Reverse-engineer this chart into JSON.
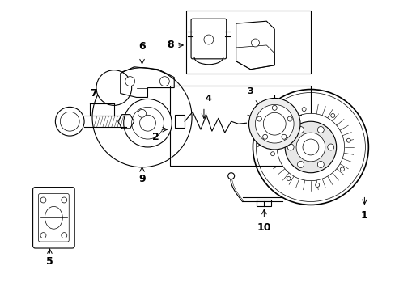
{
  "background_color": "#ffffff",
  "line_color": "#000000",
  "lw": 0.8,
  "tlw": 0.5,
  "thw": 1.2,
  "fig_width": 4.89,
  "fig_height": 3.6,
  "dpi": 100,
  "font_size": 9,
  "font_weight": "bold"
}
